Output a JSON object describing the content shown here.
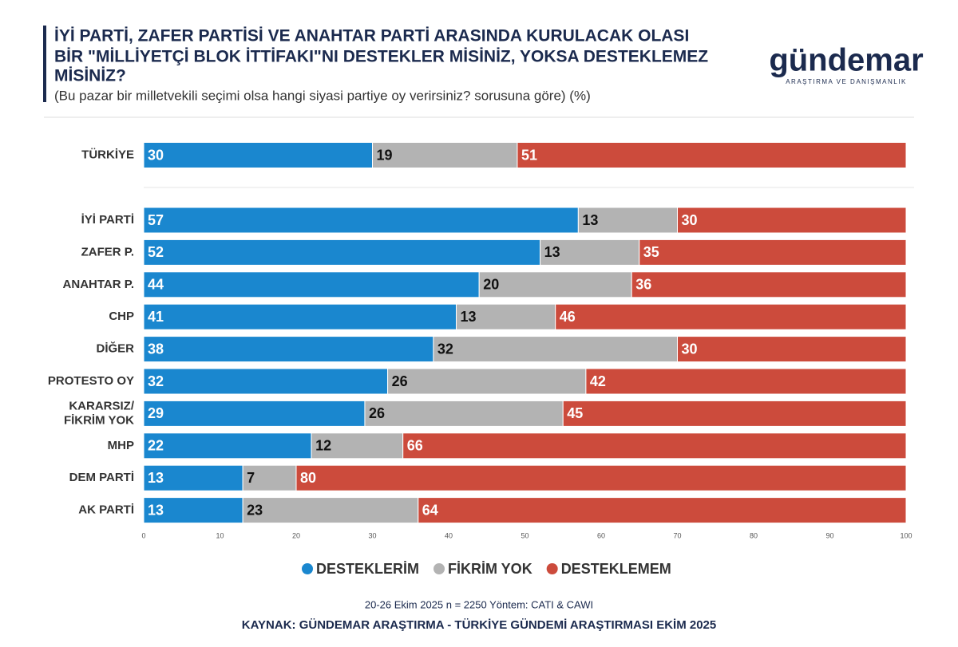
{
  "chart_data": {
    "type": "stacked-bar-horizontal",
    "title": [
      "İYİ PARTİ, ZAFER PARTİSİ VE ANAHTAR PARTİ ARASINDA KURULACAK OLASI",
      "BİR \"MİLLİYETÇİ BLOK İTTİFAKI\"NI DESTEKLER MİSİNİZ, YOKSA DESTEKLEMEZ",
      "MİSİNİZ?"
    ],
    "subtitle": "(Bu pazar bir milletvekili seçimi olsa hangi siyasi partiye oy verirsiniz? sorusuna göre) (%)",
    "logo": "gündemar",
    "logo_subtitle": "ARAŞTIRMA VE DANIŞMANLIK",
    "categories": [
      "TÜRKİYE",
      "İYİ PARTİ",
      "ZAFER P.",
      "ANAHTAR P.",
      "CHP",
      "DİĞER",
      "PROTESTO OY",
      "KARARSIZ/\nFİKRİM YOK",
      "MHP",
      "DEM PARTİ",
      "AK PARTİ"
    ],
    "series": [
      {
        "name": "DESTEKLERİM",
        "color": "#1a87cf",
        "label_color": "#ffffff",
        "values": [
          30,
          57,
          52,
          44,
          41,
          38,
          32,
          29,
          22,
          13,
          13
        ]
      },
      {
        "name": "FİKRİM YOK",
        "color": "#b3b3b3",
        "label_color": "#111111",
        "values": [
          19,
          13,
          13,
          20,
          13,
          32,
          26,
          26,
          12,
          7,
          23
        ]
      },
      {
        "name": "DESTEKLEMEM",
        "color": "#cc4b3c",
        "label_color": "#ffffff",
        "values": [
          51,
          30,
          35,
          36,
          46,
          30,
          42,
          45,
          66,
          80,
          64
        ]
      }
    ],
    "xlim": [
      0,
      100
    ],
    "xticks": [
      0,
      10,
      20,
      30,
      40,
      50,
      60,
      70,
      80,
      90,
      100
    ],
    "note": "20-26 Ekim 2025 n = 2250 Yöntem: CATI & CAWI",
    "source": "KAYNAK: GÜNDEMAR ARAŞTIRMA - TÜRKİYE GÜNDEMİ ARAŞTIRMASI EKİM 2025"
  }
}
